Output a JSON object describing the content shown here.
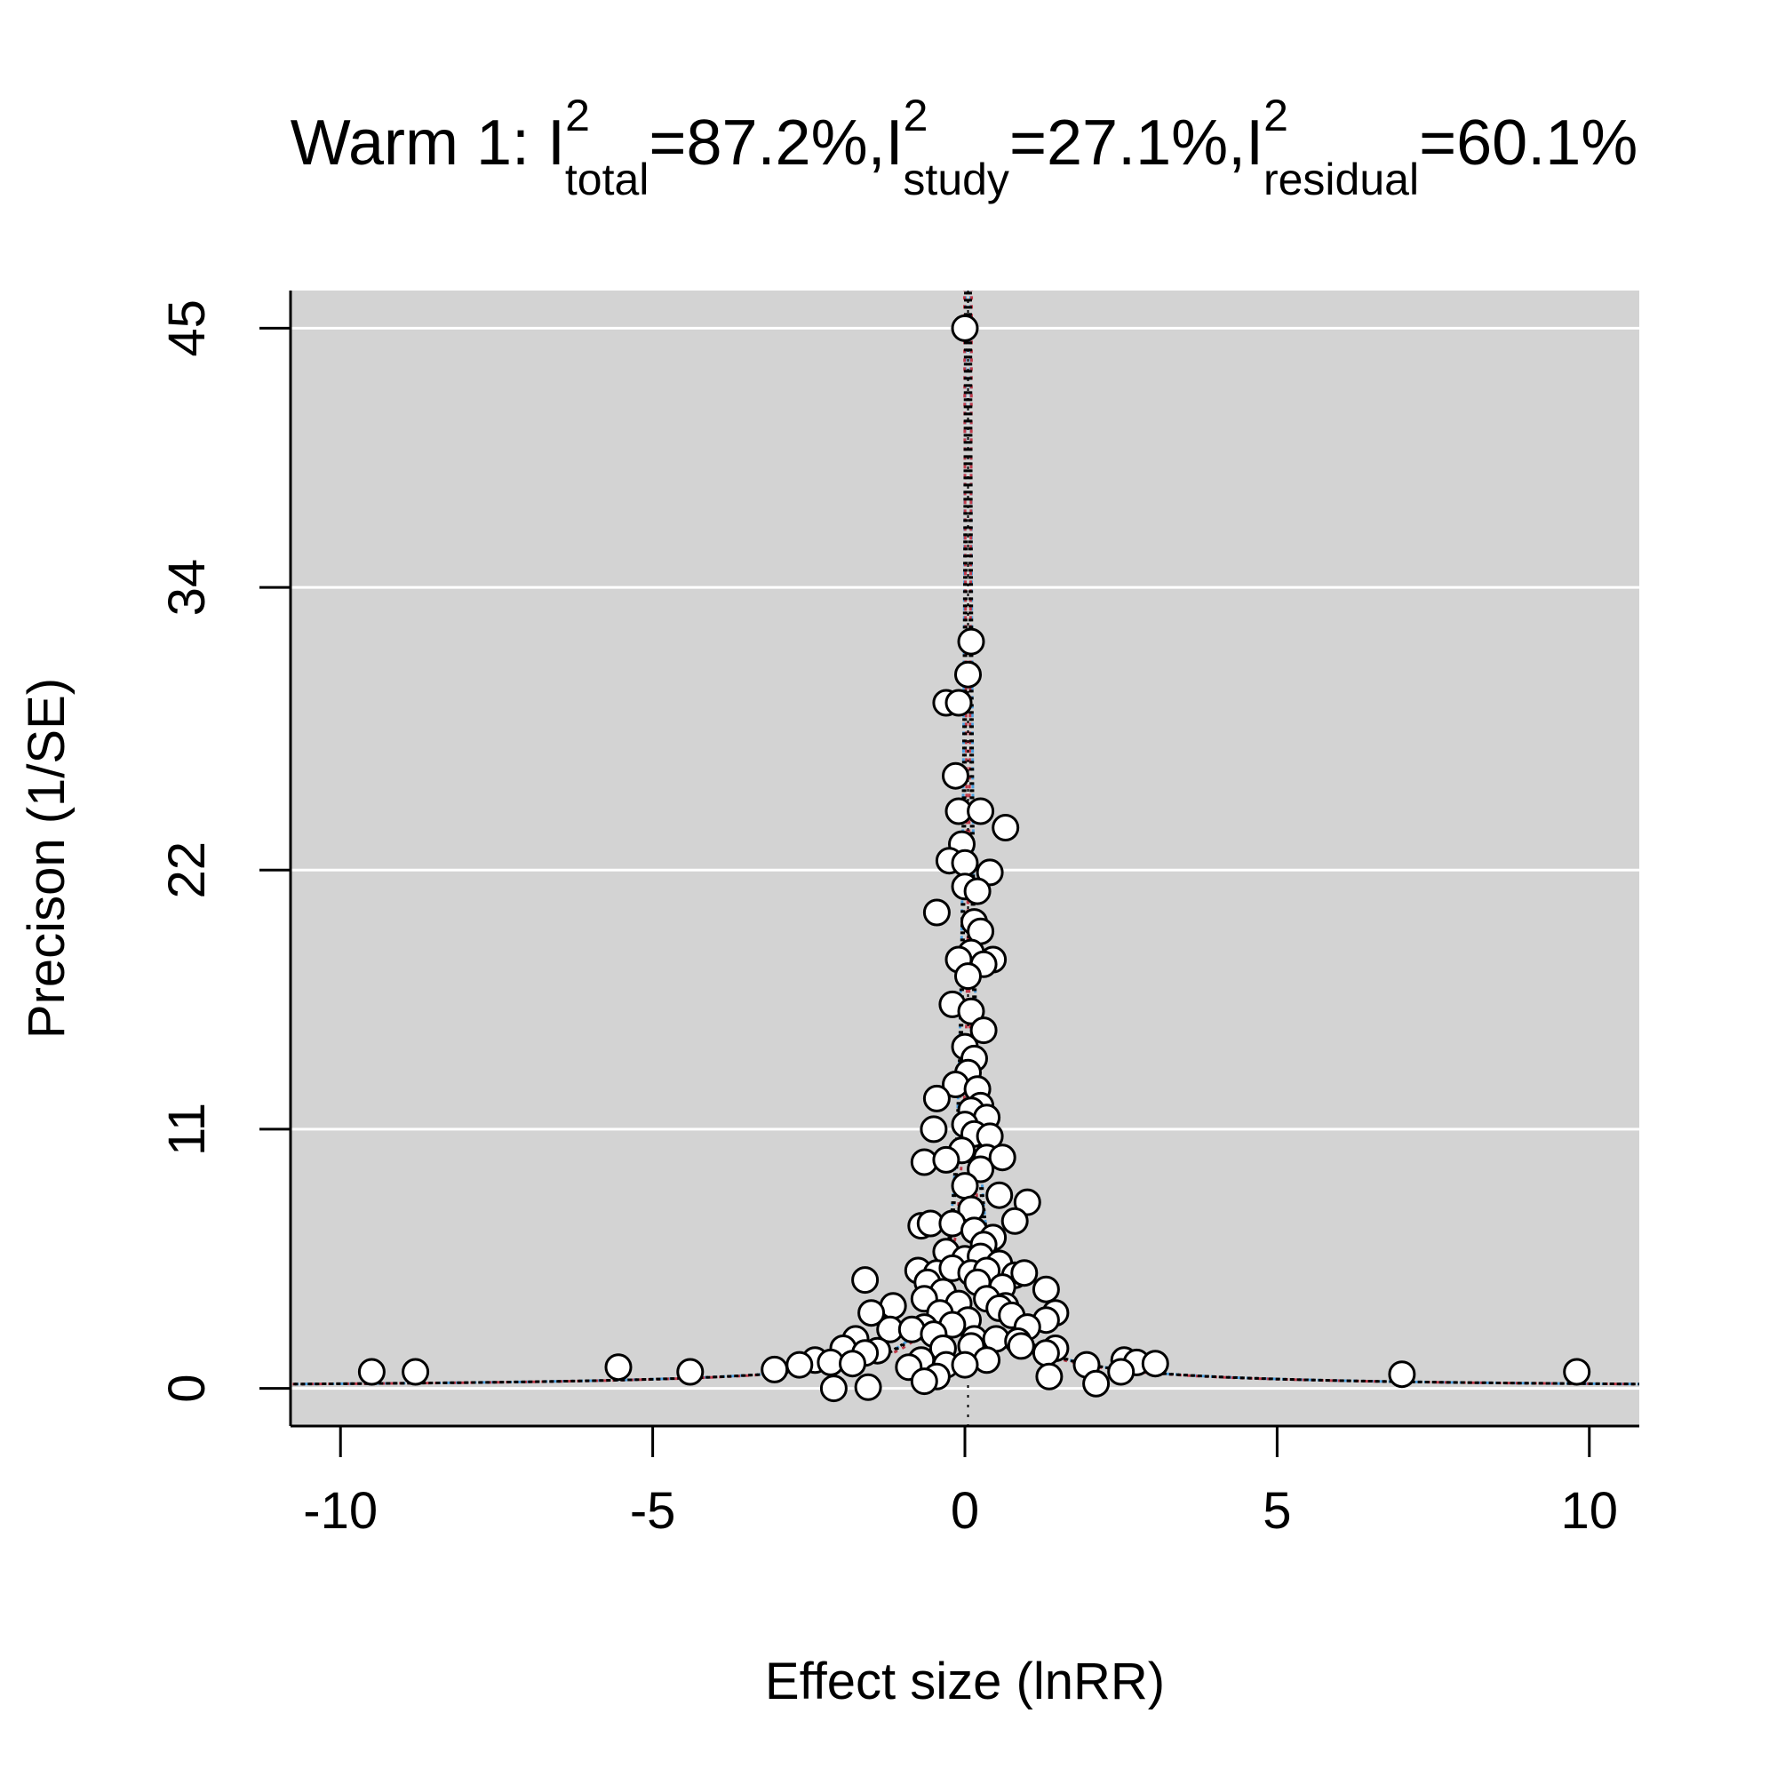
{
  "chart_data": {
    "type": "scatter",
    "title": {
      "prefix": "Warm 1: ",
      "parts": [
        {
          "base": "I",
          "sup": "2",
          "sub": "total",
          "value": "=87.2%,"
        },
        {
          "base": "I",
          "sup": "2",
          "sub": "study",
          "value": "=27.1%,"
        },
        {
          "base": "I",
          "sup": "2",
          "sub": "residual",
          "value": "=60.1%"
        }
      ]
    },
    "xlabel": "Effect size (lnRR)",
    "ylabel": "Precison (1/SE)",
    "xlim": [
      -10.8,
      10.8
    ],
    "ylim": [
      -1.6,
      46.6
    ],
    "xticks": [
      -10,
      -5,
      0,
      5,
      10
    ],
    "xtick_labels": [
      "-10",
      "-5",
      "0",
      "5",
      "10"
    ],
    "yticks": [
      0,
      11,
      22,
      34,
      45
    ],
    "ytick_labels": [
      "0",
      "11",
      "22",
      "34",
      "45"
    ],
    "grid": "horizontal",
    "legend": "none",
    "colors": {
      "panel": "#d3d3d3",
      "grid": "#ffffff",
      "point_fill": "#ffffff",
      "point_stroke": "#000000",
      "funnel": "#000000",
      "line_blue": "#4a9fe0",
      "line_red": "#c03a4a"
    },
    "center": 0.05,
    "funnel_z": 1.96,
    "points": [
      [
        0.0,
        45.0
      ],
      [
        0.1,
        31.7
      ],
      [
        0.05,
        30.3
      ],
      [
        -0.3,
        29.1
      ],
      [
        -0.1,
        29.1
      ],
      [
        -0.15,
        26.0
      ],
      [
        -0.1,
        24.5
      ],
      [
        0.25,
        24.5
      ],
      [
        0.65,
        23.8
      ],
      [
        -0.05,
        23.1
      ],
      [
        -0.25,
        22.4
      ],
      [
        0.0,
        22.3
      ],
      [
        0.4,
        21.9
      ],
      [
        0.0,
        21.3
      ],
      [
        0.2,
        21.1
      ],
      [
        -0.45,
        20.2
      ],
      [
        0.15,
        19.8
      ],
      [
        0.25,
        19.4
      ],
      [
        0.1,
        18.5
      ],
      [
        -0.1,
        18.2
      ],
      [
        0.45,
        18.2
      ],
      [
        0.3,
        18.0
      ],
      [
        0.05,
        17.5
      ],
      [
        -0.2,
        16.3
      ],
      [
        0.1,
        16.0
      ],
      [
        0.3,
        15.2
      ],
      [
        0.0,
        14.5
      ],
      [
        0.15,
        14.0
      ],
      [
        0.05,
        13.4
      ],
      [
        -0.15,
        12.9
      ],
      [
        0.2,
        12.7
      ],
      [
        -0.45,
        12.3
      ],
      [
        0.25,
        12.0
      ],
      [
        0.1,
        11.8
      ],
      [
        0.35,
        11.5
      ],
      [
        -0.5,
        11.0
      ],
      [
        0.0,
        11.2
      ],
      [
        0.15,
        10.8
      ],
      [
        0.4,
        10.7
      ],
      [
        -0.05,
        10.1
      ],
      [
        0.35,
        9.8
      ],
      [
        0.6,
        9.8
      ],
      [
        -0.65,
        9.6
      ],
      [
        -0.3,
        9.7
      ],
      [
        0.25,
        9.3
      ],
      [
        0.0,
        8.6
      ],
      [
        0.55,
        8.2
      ],
      [
        1.0,
        7.9
      ],
      [
        0.1,
        7.6
      ],
      [
        0.8,
        7.1
      ],
      [
        -0.7,
        6.9
      ],
      [
        -0.55,
        7.0
      ],
      [
        -0.2,
        7.0
      ],
      [
        0.15,
        6.7
      ],
      [
        0.45,
        6.4
      ],
      [
        0.3,
        6.1
      ],
      [
        -0.3,
        5.8
      ],
      [
        0.0,
        5.5
      ],
      [
        0.25,
        5.6
      ],
      [
        0.55,
        5.3
      ],
      [
        -0.75,
        5.0
      ],
      [
        -0.45,
        4.9
      ],
      [
        -0.2,
        5.1
      ],
      [
        0.1,
        4.9
      ],
      [
        0.35,
        5.0
      ],
      [
        0.8,
        4.8
      ],
      [
        0.95,
        4.9
      ],
      [
        -1.6,
        4.6
      ],
      [
        -0.6,
        4.5
      ],
      [
        0.2,
        4.5
      ],
      [
        0.6,
        4.3
      ],
      [
        1.3,
        4.2
      ],
      [
        -0.35,
        4.1
      ],
      [
        -0.65,
        3.8
      ],
      [
        0.35,
        3.8
      ],
      [
        0.65,
        3.5
      ],
      [
        -0.1,
        3.6
      ],
      [
        0.55,
        3.4
      ],
      [
        -1.15,
        3.5
      ],
      [
        -0.4,
        3.2
      ],
      [
        -1.5,
        3.2
      ],
      [
        1.45,
        3.2
      ],
      [
        0.75,
        3.1
      ],
      [
        1.3,
        2.9
      ],
      [
        0.05,
        2.9
      ],
      [
        -0.65,
        2.6
      ],
      [
        -0.2,
        2.7
      ],
      [
        1.0,
        2.6
      ],
      [
        -1.2,
        2.5
      ],
      [
        -0.85,
        2.5
      ],
      [
        -0.5,
        2.3
      ],
      [
        0.15,
        2.1
      ],
      [
        0.5,
        2.1
      ],
      [
        0.85,
        2.0
      ],
      [
        -1.75,
        2.1
      ],
      [
        0.9,
        1.8
      ],
      [
        -0.35,
        1.7
      ],
      [
        0.1,
        1.8
      ],
      [
        1.45,
        1.7
      ],
      [
        -1.4,
        1.6
      ],
      [
        1.3,
        1.5
      ],
      [
        -1.95,
        1.7
      ],
      [
        -1.6,
        1.5
      ],
      [
        0.35,
        1.2
      ],
      [
        -0.7,
        1.2
      ],
      [
        -0.3,
        1.0
      ],
      [
        2.55,
        1.2
      ],
      [
        2.75,
        1.1
      ],
      [
        3.05,
        1.05
      ],
      [
        -2.4,
        1.2
      ],
      [
        -2.65,
        1.0
      ],
      [
        -2.15,
        1.1
      ],
      [
        -1.8,
        1.05
      ],
      [
        -0.9,
        0.9
      ],
      [
        1.95,
        1.0
      ],
      [
        2.5,
        0.7
      ],
      [
        -3.05,
        0.8
      ],
      [
        -5.55,
        0.9
      ],
      [
        -4.4,
        0.7
      ],
      [
        -8.8,
        0.7
      ],
      [
        -9.5,
        0.7
      ],
      [
        7.0,
        0.6
      ],
      [
        9.8,
        0.7
      ],
      [
        1.35,
        0.5
      ],
      [
        -0.45,
        0.5
      ],
      [
        -0.65,
        0.3
      ],
      [
        -2.1,
        0.0
      ],
      [
        -1.55,
        0.05
      ],
      [
        2.1,
        0.2
      ],
      [
        0.0,
        1.0
      ]
    ]
  }
}
